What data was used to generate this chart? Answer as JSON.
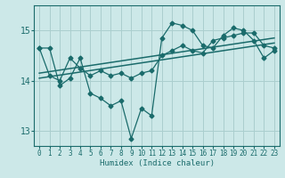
{
  "xlabel": "Humidex (Indice chaleur)",
  "bg_color": "#cce8e8",
  "grid_color": "#aacece",
  "line_color": "#1a6b6b",
  "xlim": [
    -0.5,
    23.5
  ],
  "ylim": [
    12.7,
    15.5
  ],
  "yticks": [
    13,
    14,
    15
  ],
  "xticks": [
    0,
    1,
    2,
    3,
    4,
    5,
    6,
    7,
    8,
    9,
    10,
    11,
    12,
    13,
    14,
    15,
    16,
    17,
    18,
    19,
    20,
    21,
    22,
    23
  ],
  "series1_x": [
    0,
    1,
    2,
    3,
    4,
    5,
    6,
    7,
    8,
    9,
    10,
    11,
    12,
    13,
    14,
    15,
    16,
    17,
    18,
    19,
    20,
    21,
    22,
    23
  ],
  "series1_y": [
    14.65,
    14.65,
    13.9,
    14.05,
    14.45,
    13.75,
    13.65,
    13.5,
    13.6,
    12.85,
    13.45,
    13.3,
    14.85,
    15.15,
    15.1,
    15.0,
    14.7,
    14.65,
    14.9,
    15.05,
    15.0,
    14.8,
    14.45,
    14.6
  ],
  "series2_x": [
    0,
    1,
    2,
    3,
    4,
    5,
    6,
    7,
    8,
    9,
    10,
    11,
    12,
    13,
    14,
    15,
    16,
    17,
    18,
    19,
    20,
    21,
    22,
    23
  ],
  "series2_y": [
    14.65,
    14.1,
    14.0,
    14.45,
    14.25,
    14.1,
    14.2,
    14.1,
    14.15,
    14.05,
    14.15,
    14.2,
    14.5,
    14.6,
    14.7,
    14.6,
    14.55,
    14.8,
    14.85,
    14.9,
    14.95,
    14.95,
    14.7,
    14.65
  ],
  "series3_x": [
    0,
    23
  ],
  "series3_y": [
    14.05,
    14.75
  ],
  "series4_x": [
    0,
    23
  ],
  "series4_y": [
    14.15,
    14.85
  ],
  "marker": "D",
  "markersize": 2.5,
  "linewidth": 0.9
}
